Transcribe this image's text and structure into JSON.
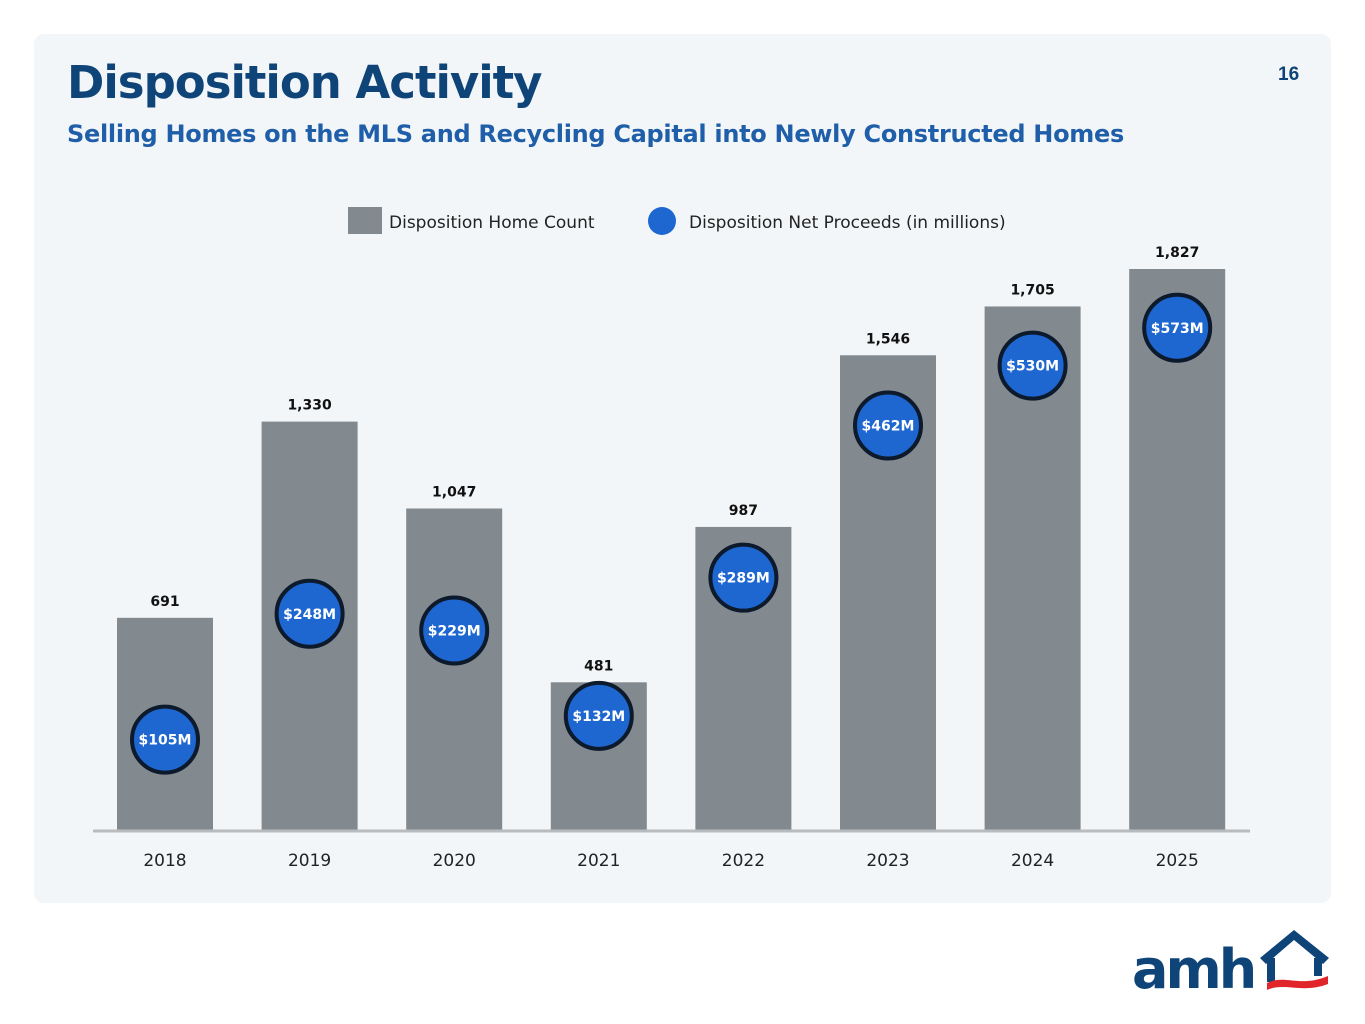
{
  "header": {
    "title": "Disposition Activity",
    "subtitle": "Selling Homes on the MLS and Recycling Capital into Newly Constructed Homes",
    "page_number": "16"
  },
  "logo": {
    "text": "amh",
    "icon": "house-roof-icon"
  },
  "colors": {
    "bar": "#82898f",
    "bubble": "#1e66d0",
    "bubble_outline": "#0c1a2c",
    "title": "#0f4478",
    "subtitle": "#1f5ea8",
    "logo_red": "#e0262b"
  },
  "chart_data": {
    "type": "bar",
    "title": "Disposition Activity",
    "xlabel": "",
    "ylabel": "",
    "categories": [
      "2018",
      "2019",
      "2020",
      "2021",
      "2022",
      "2023",
      "2024",
      "2025"
    ],
    "series": [
      {
        "name": "Disposition Home Count",
        "type": "bar",
        "values": [
          691,
          1330,
          1047,
          481,
          987,
          1546,
          1705,
          1827
        ],
        "labels": [
          "691",
          "1,330",
          "1,047",
          "481",
          "987",
          "1,546",
          "1,705",
          "1,827"
        ]
      },
      {
        "name": "Disposition Net Proceeds (in millions)",
        "type": "scatter",
        "values": [
          105,
          248,
          229,
          132,
          289,
          462,
          530,
          573
        ],
        "labels": [
          "$105M",
          "$248M",
          "$229M",
          "$132M",
          "$289M",
          "$462M",
          "$530M",
          "$573M"
        ]
      }
    ],
    "legend": {
      "position": "top-center",
      "entries": [
        "Disposition Home Count",
        "Disposition Net Proceeds (in millions)"
      ]
    },
    "grid": false
  }
}
